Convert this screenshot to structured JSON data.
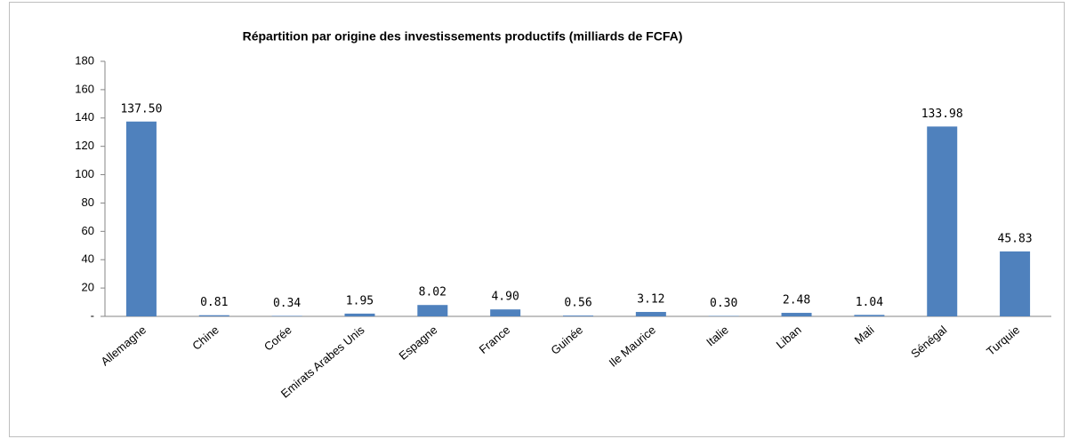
{
  "chart_data": {
    "type": "bar",
    "title": "Répartition  par origine des investissements productifs (milliards de FCFA)",
    "categories": [
      "Allemagne",
      "Chine",
      "Corée",
      "Emirats Arabes Unis",
      "Espagne",
      "France",
      "Guinée",
      "Ile Maurice",
      "Italie",
      "Liban",
      "Mali",
      "Sénégal",
      "Turquie"
    ],
    "values": [
      137.5,
      0.81,
      0.34,
      1.95,
      8.02,
      4.9,
      0.56,
      3.12,
      0.3,
      2.48,
      1.04,
      133.98,
      45.83
    ],
    "value_labels": [
      "137.50",
      "0.81",
      "0.34",
      "1.95",
      "8.02",
      "4.90",
      "0.56",
      "3.12",
      "0.30",
      "2.48",
      "1.04",
      "133.98",
      "45.83"
    ],
    "color": "#4f81bd",
    "ylim": [
      0,
      180
    ],
    "yticks": [
      {
        "value": 0,
        "label": "-"
      },
      20,
      40,
      60,
      80,
      100,
      120,
      140,
      160,
      180
    ],
    "grid": false
  }
}
